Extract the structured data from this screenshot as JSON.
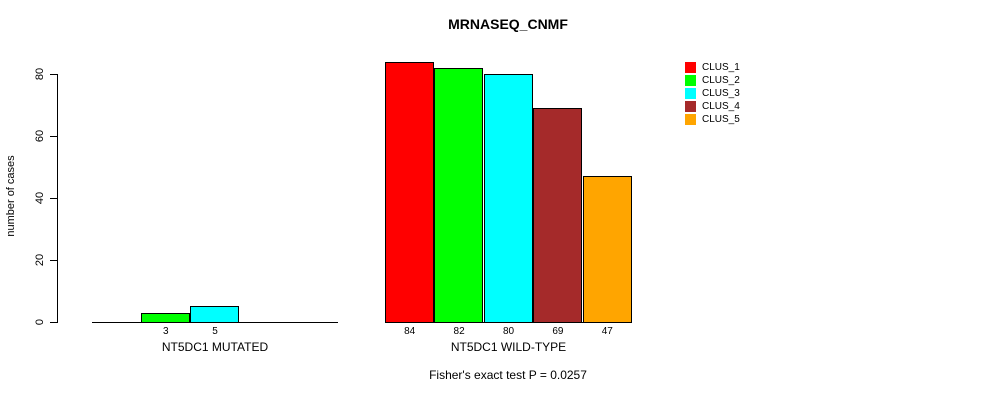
{
  "title": "MRNASEQ_CNMF",
  "footer": "Fisher's exact test P = 0.0257",
  "chart_data": {
    "type": "bar",
    "title": "MRNASEQ_CNMF",
    "xlabel": "",
    "ylabel": "number of cases",
    "ylim": [
      0,
      80
    ],
    "y_ticks": [
      0,
      20,
      40,
      60,
      80
    ],
    "grid": false,
    "legend_position": "top-right",
    "legend": [
      "CLUS_1",
      "CLUS_2",
      "CLUS_3",
      "CLUS_4",
      "CLUS_5"
    ],
    "series_colors": [
      "#ff0000",
      "#00ff00",
      "#00ffff",
      "#a52a2a",
      "#ffa500"
    ],
    "groups": [
      {
        "label": "NT5DC1 MUTATED",
        "values": [
          0,
          3,
          5,
          0,
          0
        ],
        "bar_labels": [
          "",
          "3",
          "5",
          "",
          ""
        ]
      },
      {
        "label": "NT5DC1 WILD-TYPE",
        "values": [
          84,
          82,
          80,
          69,
          47
        ],
        "bar_labels": [
          "84",
          "82",
          "80",
          "69",
          "47"
        ]
      }
    ],
    "annotation": "Fisher's exact test P = 0.0257",
    "axis_color": "#000000",
    "background_color": "#ffffff"
  }
}
